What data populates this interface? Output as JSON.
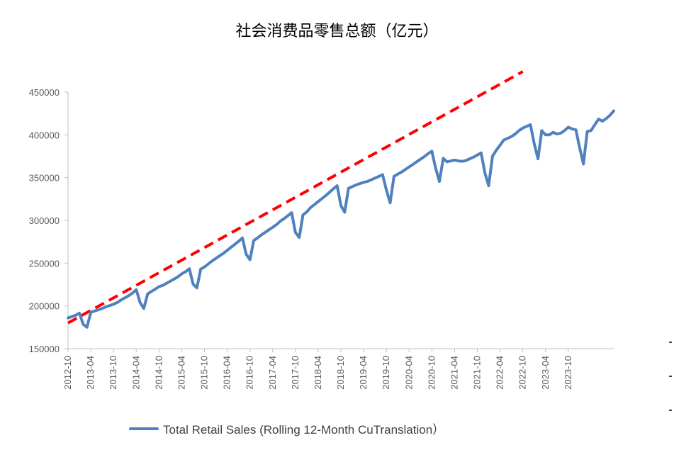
{
  "chart_data": {
    "type": "line",
    "title": "社会消费品零售总额（亿元）",
    "ylim": [
      150000,
      450000
    ],
    "y_ticks": [
      "150000",
      "200000",
      "250000",
      "300000",
      "350000",
      "400000",
      "450000"
    ],
    "x_ticks": [
      "2012-10",
      "2013-04",
      "2013-10",
      "2014-04",
      "2014-10",
      "2015-04",
      "2015-10",
      "2016-04",
      "2016-10",
      "2017-04",
      "2017-10",
      "2018-04",
      "2018-10",
      "2019-04",
      "2019-10",
      "2020-04",
      "2020-10",
      "2021-04",
      "2021-10",
      "2022-04",
      "2022-10",
      "2023-04",
      "2023-10"
    ],
    "series": [
      {
        "name": "Total Retail Sales (Rolling 12-Month CuTranslation）",
        "color": "#4f81bd",
        "values": [
          186000,
          187500,
          189000,
          191500,
          178500,
          175000,
          192500,
          194000,
          195500,
          197000,
          199000,
          200500,
          202000,
          204000,
          207000,
          209500,
          212000,
          215000,
          219000,
          204000,
          197000,
          214000,
          217000,
          219500,
          222500,
          224000,
          226500,
          229000,
          231500,
          234000,
          237500,
          240000,
          243500,
          225500,
          221000,
          243000,
          245500,
          249000,
          252500,
          255500,
          258500,
          261500,
          265000,
          268500,
          272000,
          275500,
          279500,
          260500,
          254000,
          276500,
          279500,
          283000,
          286000,
          289000,
          292000,
          295000,
          299000,
          302000,
          305500,
          309000,
          286000,
          280000,
          306500,
          310000,
          315000,
          318500,
          322000,
          325500,
          329000,
          333000,
          337000,
          340500,
          317500,
          309500,
          337500,
          339500,
          341500,
          343000,
          344500,
          345500,
          347500,
          349500,
          351500,
          353500,
          335500,
          320500,
          351500,
          354000,
          356500,
          359500,
          362500,
          365500,
          368500,
          371500,
          374500,
          378000,
          381000,
          361000,
          345500,
          372500,
          368500,
          369500,
          370500,
          369500,
          369000,
          370000,
          372000,
          374000,
          376500,
          379000,
          355500,
          340500,
          375000,
          382000,
          388000,
          394000,
          396000,
          398000,
          401000,
          405000,
          408000,
          410000,
          412000,
          390000,
          372000,
          405000,
          400000,
          400000,
          403000,
          401000,
          402000,
          405000,
          409000,
          407000,
          406000,
          385000,
          366000,
          404000,
          405000,
          412000,
          418500,
          416000,
          419000,
          423000,
          428000
        ],
        "trend": {
          "style": "dashed",
          "color": "#ff0000",
          "start": {
            "x": "2012-10",
            "y": 180000
          },
          "end": {
            "x": "2022-10",
            "y": 474000
          }
        }
      }
    ]
  }
}
